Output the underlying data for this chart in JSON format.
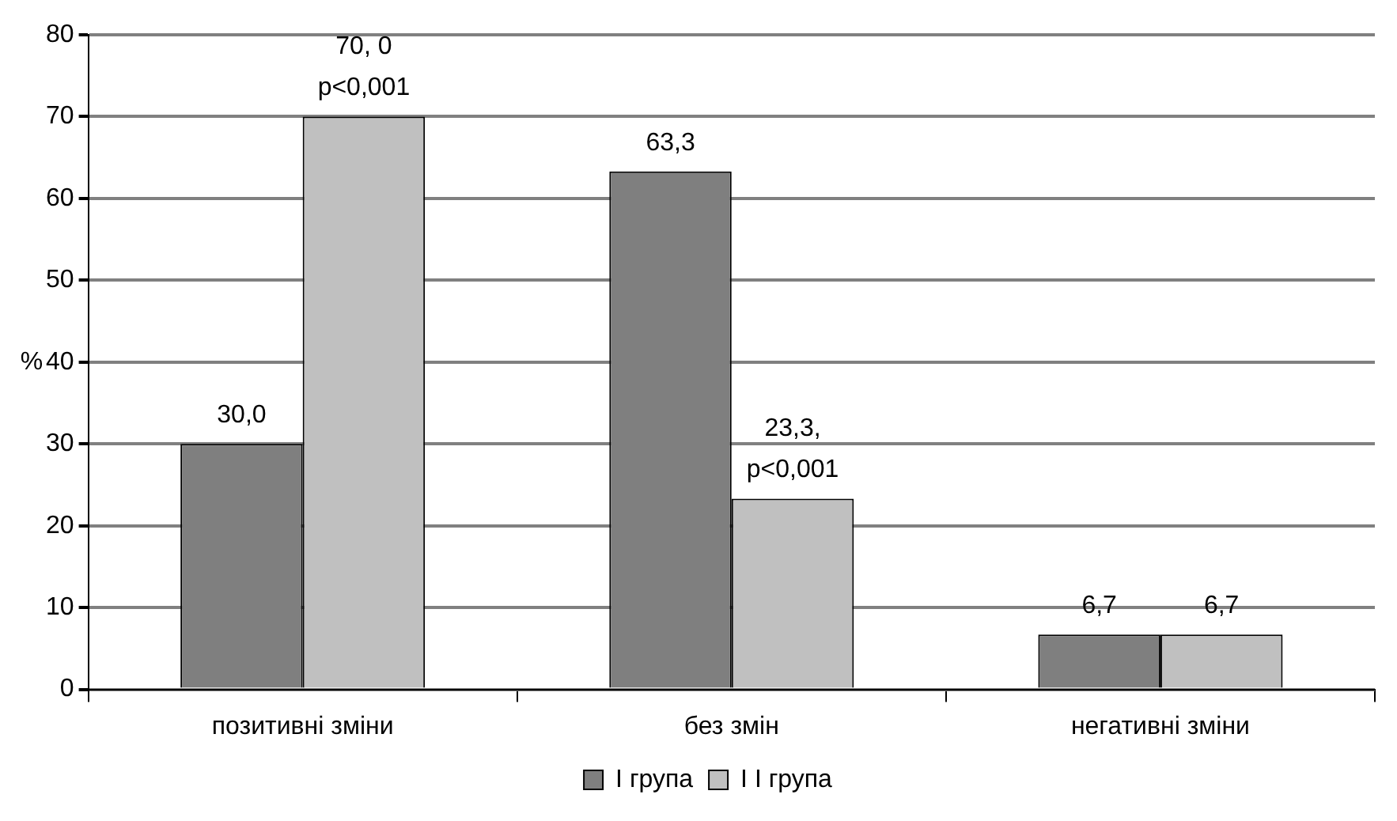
{
  "chart_data": {
    "type": "bar",
    "ylabel": "%",
    "categories": [
      "позитивні зміни",
      "без змін",
      "негативні зміни"
    ],
    "series": [
      {
        "name": "I група",
        "color": "#7f7f7f",
        "values": [
          30.0,
          63.3,
          6.7
        ],
        "value_labels": [
          "30,0",
          "63,3",
          "6,7"
        ]
      },
      {
        "name": "I I група",
        "color": "#c0c0c0",
        "values": [
          70.0,
          23.3,
          6.7
        ],
        "value_labels": [
          "70, 0\np<0,001",
          "23,3,\np<0,001",
          "6,7"
        ]
      }
    ],
    "ylim": [
      0,
      80
    ],
    "yticks": [
      0,
      10,
      20,
      30,
      40,
      50,
      60,
      70,
      80
    ],
    "grid": "y",
    "legend": "bottom"
  }
}
